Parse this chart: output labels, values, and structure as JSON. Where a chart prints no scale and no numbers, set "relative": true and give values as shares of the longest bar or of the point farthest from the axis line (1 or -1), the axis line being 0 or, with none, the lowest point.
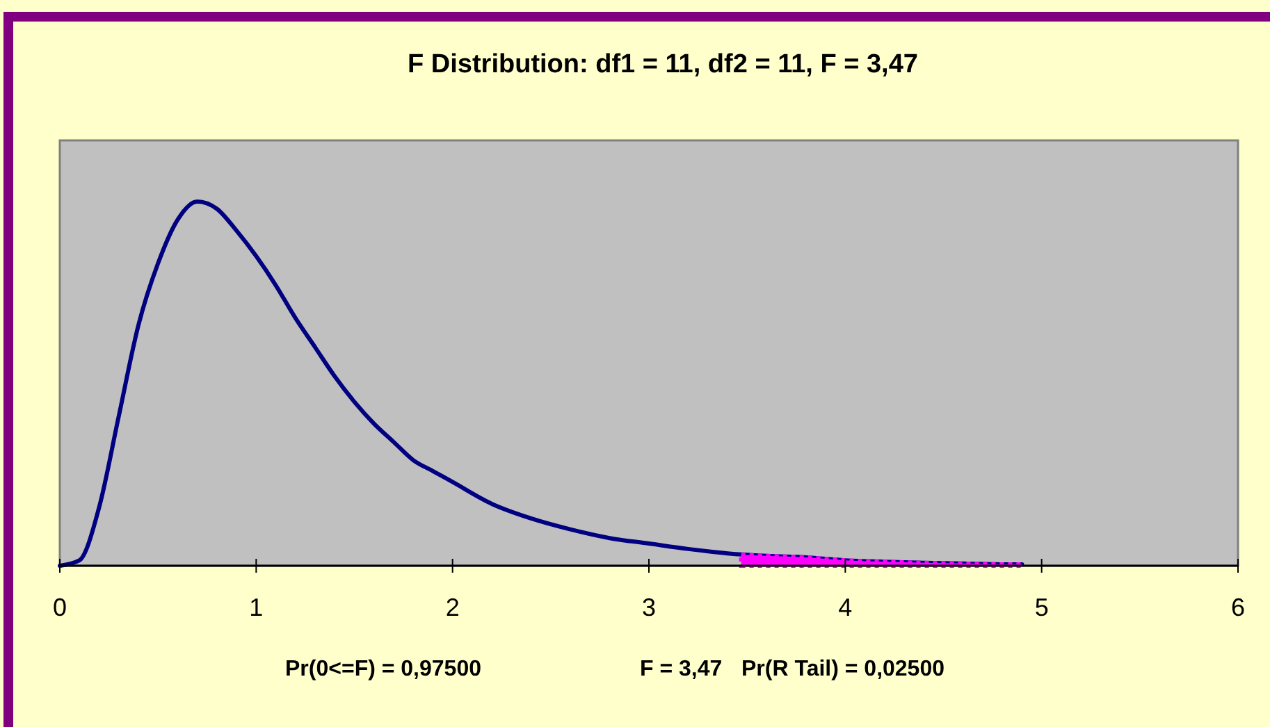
{
  "chart_data": {
    "type": "line",
    "title": "F Distribution: df1 = 11, df2 = 11, F = 3,47",
    "relative": true,
    "xlim": [
      0,
      6
    ],
    "xticks": [
      0,
      1,
      2,
      3,
      4,
      5,
      6
    ],
    "grid": false,
    "annotations": [
      "Pr(0<=F) = 0,97500",
      "F = 3,47",
      "Pr(R Tail) = 0,02500"
    ],
    "series": [
      {
        "color": "#000080",
        "x": [
          0,
          0.1,
          0.2,
          0.3,
          0.4,
          0.5,
          0.6,
          0.7,
          0.8,
          0.9,
          1.0,
          1.1,
          1.2,
          1.3,
          1.4,
          1.5,
          1.6,
          1.7,
          1.8,
          1.9,
          2.0,
          2.2,
          2.4,
          2.6,
          2.8,
          3.0,
          3.2,
          3.4,
          3.6,
          3.8,
          4.0,
          4.2,
          4.4,
          4.6,
          4.8,
          4.9
        ],
        "values": [
          0,
          0.015,
          0.16,
          0.41,
          0.66,
          0.83,
          0.95,
          1.0,
          0.98,
          0.92,
          0.85,
          0.77,
          0.68,
          0.6,
          0.52,
          0.45,
          0.39,
          0.34,
          0.29,
          0.26,
          0.23,
          0.17,
          0.13,
          0.1,
          0.076,
          0.061,
          0.046,
          0.034,
          0.027,
          0.023,
          0.015,
          0.011,
          0.008,
          0.006,
          0.004,
          0.004
        ]
      },
      {
        "type": "area",
        "color": "#ff00ff",
        "x": [
          3.47,
          3.6,
          3.8,
          4.0,
          4.2,
          4.4,
          4.6,
          4.8,
          4.9
        ],
        "values": [
          0.03,
          0.027,
          0.023,
          0.015,
          0.011,
          0.008,
          0.006,
          0.004,
          0.004
        ]
      }
    ]
  }
}
